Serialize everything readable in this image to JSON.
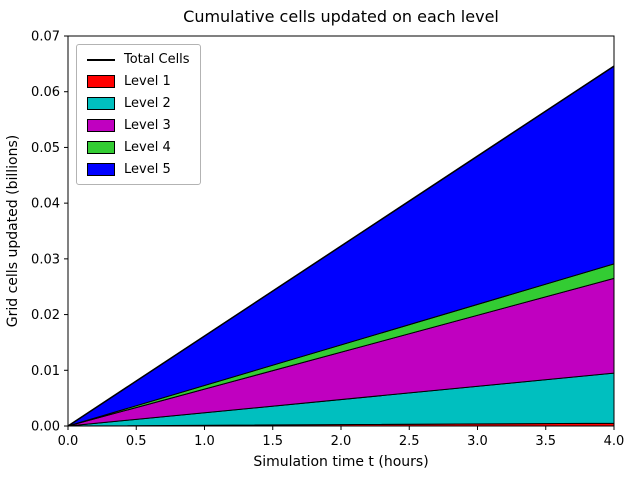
{
  "chart_data": {
    "type": "area",
    "stacked": true,
    "title": "Cumulative cells updated on each level",
    "xlabel": "Simulation time t (hours)",
    "ylabel": "Grid cells updated (billions)",
    "xlim": [
      0,
      4
    ],
    "ylim": [
      0,
      0.07
    ],
    "grid": false,
    "x": [
      0,
      4
    ],
    "x_ticks": [
      0.0,
      0.5,
      1.0,
      1.5,
      2.0,
      2.5,
      3.0,
      3.5,
      4.0
    ],
    "x_tick_labels": [
      "0.0",
      "0.5",
      "1.0",
      "1.5",
      "2.0",
      "2.5",
      "3.0",
      "3.5",
      "4.0"
    ],
    "y_ticks": [
      0.0,
      0.01,
      0.02,
      0.03,
      0.04,
      0.05,
      0.06,
      0.07
    ],
    "y_tick_labels": [
      "0.00",
      "0.01",
      "0.02",
      "0.03",
      "0.04",
      "0.05",
      "0.06",
      "0.07"
    ],
    "series": [
      {
        "name": "Level 1",
        "color": "#ff0000",
        "values": [
          0,
          0.0005
        ]
      },
      {
        "name": "Level 2",
        "color": "#00bfbf",
        "values": [
          0,
          0.009
        ]
      },
      {
        "name": "Level 3",
        "color": "#c000c0",
        "values": [
          0,
          0.017
        ]
      },
      {
        "name": "Level 4",
        "color": "#33cc33",
        "values": [
          0,
          0.0026
        ]
      },
      {
        "name": "Level 5",
        "color": "#0000ff",
        "values": [
          0,
          0.0355
        ]
      }
    ],
    "total_line": {
      "name": "Total Cells",
      "color": "#000000",
      "values": [
        0,
        0.0646
      ]
    },
    "legend": {
      "position": "upper left",
      "items": [
        {
          "label": "Total Cells",
          "color": "#000000",
          "handle": "line"
        },
        {
          "label": "Level 1",
          "color": "#ff0000",
          "handle": "patch"
        },
        {
          "label": "Level 2",
          "color": "#00bfbf",
          "handle": "patch"
        },
        {
          "label": "Level 3",
          "color": "#c000c0",
          "handle": "patch"
        },
        {
          "label": "Level 4",
          "color": "#33cc33",
          "handle": "patch"
        },
        {
          "label": "Level 5",
          "color": "#0000ff",
          "handle": "patch"
        }
      ]
    }
  }
}
